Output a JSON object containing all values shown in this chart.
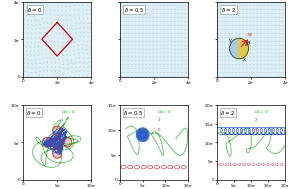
{
  "flow_color": "#55aacc",
  "flow_bg": "#ddeef5",
  "top_labels": [
    "δ=0",
    "δ=0.5",
    "δ=2"
  ],
  "bot_labels": [
    "δ=0",
    "δ=0.5",
    "δ=2"
  ],
  "legend_green": "#22aa22",
  "legend_blue": "#2255cc",
  "legend_red": "#cc2222",
  "diamond_red": "#cc0000",
  "particle_yellow": "#ddcc44",
  "particle_blue": "#aaccdd",
  "seed": 7
}
